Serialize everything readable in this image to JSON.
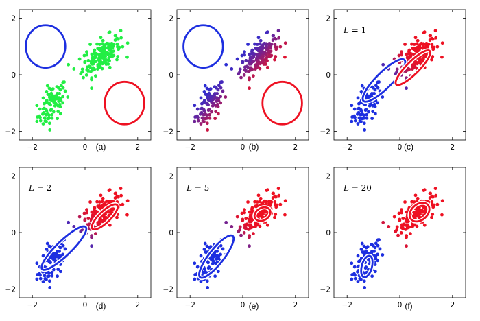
{
  "figure": {
    "panel_letters": [
      "(a)",
      "(b)",
      "(c)",
      "(d)",
      "(e)",
      "(f)"
    ],
    "l_values": [
      "",
      "",
      "1",
      "2",
      "5",
      "20"
    ],
    "x_tick_labels": [
      "−2",
      "0",
      "2"
    ],
    "y_tick_labels": [
      "2",
      "0",
      "−2"
    ]
  },
  "colors": {
    "cluster_a": "#1d2fe0",
    "cluster_b": "#ee1122",
    "unassigned": "#22ee44"
  },
  "chart_data": [
    {
      "type": "scatter",
      "panel": "(a)",
      "xlim": [
        -2.5,
        2.5
      ],
      "ylim": [
        -2.3,
        2.3
      ],
      "xticks": [
        -2,
        0,
        2
      ],
      "yticks": [
        -2,
        0,
        2
      ],
      "coloring": "unassigned",
      "components": [
        {
          "name": "",
          "color": "#1d2fe0",
          "center": [
            -1.5,
            1.0
          ],
          "radii": [
            0.75,
            0.75
          ],
          "angle_deg": 0
        },
        {
          "name": "",
          "color": "#ee1122",
          "center": [
            1.5,
            -1.0
          ],
          "radii": [
            0.75,
            0.75
          ],
          "angle_deg": 0
        }
      ]
    },
    {
      "type": "scatter",
      "panel": "(b)",
      "xlim": [
        -2.5,
        2.5
      ],
      "ylim": [
        -2.3,
        2.3
      ],
      "xticks": [
        -2,
        0,
        2
      ],
      "yticks": [
        -2,
        0,
        2
      ],
      "coloring": "responsibility-initial",
      "components": [
        {
          "name": "",
          "color": "#1d2fe0",
          "center": [
            -1.5,
            1.0
          ],
          "radii": [
            0.75,
            0.75
          ],
          "angle_deg": 0
        },
        {
          "name": "",
          "color": "#ee1122",
          "center": [
            1.5,
            -1.0
          ],
          "radii": [
            0.75,
            0.75
          ],
          "angle_deg": 0
        }
      ]
    },
    {
      "type": "scatter",
      "panel": "(c)",
      "l_value": "1",
      "xlim": [
        -2.5,
        2.5
      ],
      "ylim": [
        -2.3,
        2.3
      ],
      "xticks": [
        -2,
        0,
        2
      ],
      "yticks": [
        -2,
        0,
        2
      ],
      "coloring": "responsibility-L1",
      "components": [
        {
          "name": "",
          "color": "#1d2fe0",
          "center": [
            -0.6,
            -0.2
          ],
          "radii": [
            1.1,
            0.28
          ],
          "angle_deg": 45
        },
        {
          "name": "",
          "color": "#ee1122",
          "center": [
            0.5,
            0.25
          ],
          "radii": [
            0.9,
            0.22
          ],
          "angle_deg": 45
        }
      ]
    },
    {
      "type": "scatter",
      "panel": "(d)",
      "l_value": "2",
      "xlim": [
        -2.5,
        2.5
      ],
      "ylim": [
        -2.3,
        2.3
      ],
      "xticks": [
        -2,
        0,
        2
      ],
      "yticks": [
        -2,
        0,
        2
      ],
      "coloring": "responsibility-L2",
      "components": [
        {
          "name": "",
          "color": "#1d2fe0",
          "center": [
            -0.8,
            -0.55
          ],
          "radii": [
            1.15,
            0.26
          ],
          "angle_deg": 44
        },
        {
          "name": "",
          "color": "#ee1122",
          "center": [
            0.75,
            0.55
          ],
          "radii": [
            0.65,
            0.2
          ],
          "angle_deg": 44
        }
      ]
    },
    {
      "type": "scatter",
      "panel": "(e)",
      "l_value": "5",
      "xlim": [
        -2.5,
        2.5
      ],
      "ylim": [
        -2.3,
        2.3
      ],
      "xticks": [
        -2,
        0,
        2
      ],
      "yticks": [
        -2,
        0,
        2
      ],
      "coloring": "responsibility-L5",
      "components": [
        {
          "name": "",
          "color": "#1d2fe0",
          "center": [
            -1.0,
            -0.85
          ],
          "radii": [
            1.0,
            0.26
          ],
          "angle_deg": 52
        },
        {
          "name": "",
          "color": "#ee1122",
          "center": [
            0.75,
            0.65
          ],
          "radii": [
            0.32,
            0.22
          ],
          "angle_deg": 30
        }
      ]
    },
    {
      "type": "scatter",
      "panel": "(f)",
      "l_value": "20",
      "xlim": [
        -2.5,
        2.5
      ],
      "ylim": [
        -2.3,
        2.3
      ],
      "xticks": [
        -2,
        0,
        2
      ],
      "yticks": [
        -2,
        0,
        2
      ],
      "coloring": "responsibility-L20",
      "components": [
        {
          "name": "",
          "color": "#1d2fe0",
          "center": [
            -1.25,
            -1.2
          ],
          "radii": [
            0.42,
            0.18
          ],
          "angle_deg": 75
        },
        {
          "name": "",
          "color": "#ee1122",
          "center": [
            0.75,
            0.72
          ],
          "radii": [
            0.42,
            0.28
          ],
          "angle_deg": 40
        }
      ]
    }
  ]
}
